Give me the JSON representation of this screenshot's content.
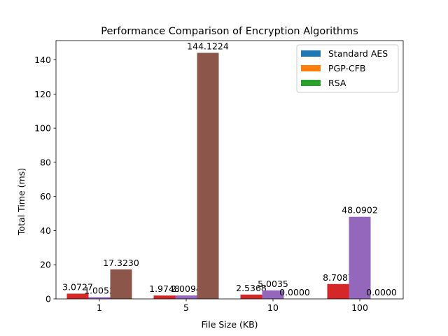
{
  "chart_data": {
    "type": "bar",
    "title": "Performance Comparison of Encryption Algorithms",
    "xlabel": "File Size (KB)",
    "ylabel": "Total Time (ms)",
    "categories": [
      "1",
      "5",
      "10",
      "100"
    ],
    "ylim": [
      0,
      151.3
    ],
    "yticks": [
      0,
      20,
      40,
      60,
      80,
      100,
      120,
      140
    ],
    "legend_position": "top-right",
    "legend": [
      {
        "name": "Standard AES",
        "color": "#1f77b4"
      },
      {
        "name": "PGP-CFB",
        "color": "#ff7f0e"
      },
      {
        "name": "RSA",
        "color": "#2ca02c"
      }
    ],
    "series": [
      {
        "color": "#d62728",
        "values": [
          3.0727,
          1.9748,
          2.5368,
          8.7087
        ],
        "labels": [
          "3.0727",
          "1.9748",
          "2.5368",
          "8.7087"
        ]
      },
      {
        "color": "#9467bd",
        "values": [
          1.0052,
          2.0094,
          5.0035,
          48.0902
        ],
        "labels": [
          "1.0052",
          "2.0094",
          "5.0035",
          "48.0902"
        ]
      },
      {
        "color": "#8c564b",
        "values": [
          17.323,
          144.1224,
          0,
          0
        ],
        "labels": [
          "17.3230",
          "144.1224",
          "0.0000",
          "0.0000"
        ]
      }
    ],
    "grid": false
  }
}
